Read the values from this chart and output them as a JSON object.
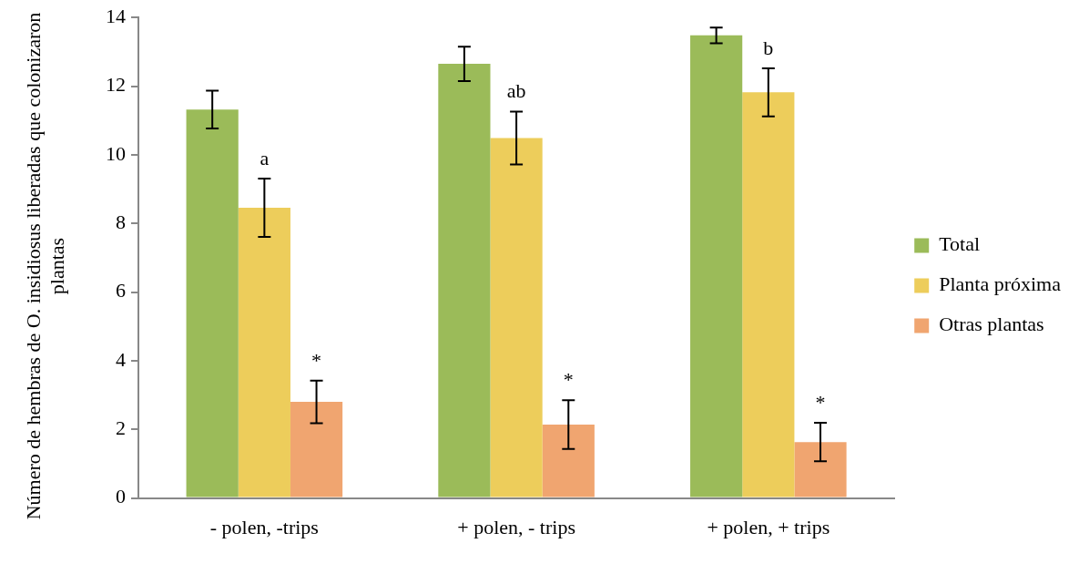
{
  "chart_data": {
    "type": "bar",
    "ylabel": "Número de hembras de O. insidiosus liberadas que colonizaron plantas",
    "categories": [
      "- polen, -trips",
      "+ polen, - trips",
      "+ polen, + trips"
    ],
    "series": [
      {
        "name": "Total",
        "color": "#9bbb59",
        "values": [
          11.32,
          12.65,
          13.48
        ],
        "errors": [
          0.55,
          0.5,
          0.23
        ]
      },
      {
        "name": "Planta próxima",
        "color": "#edcd5b",
        "values": [
          8.46,
          10.49,
          11.82
        ],
        "errors": [
          0.85,
          0.77,
          0.7
        ],
        "value_labels": [
          "a",
          "ab",
          "b"
        ]
      },
      {
        "name": "Otras plantas",
        "color": "#f0a570",
        "values": [
          2.8,
          2.14,
          1.63
        ],
        "errors": [
          0.62,
          0.71,
          0.56
        ],
        "value_labels": [
          "*",
          "*",
          "*"
        ]
      }
    ],
    "ylim": [
      0,
      14
    ],
    "yticks": [
      0,
      2,
      4,
      6,
      8,
      10,
      12,
      14
    ],
    "grid": false,
    "legend": "right"
  }
}
